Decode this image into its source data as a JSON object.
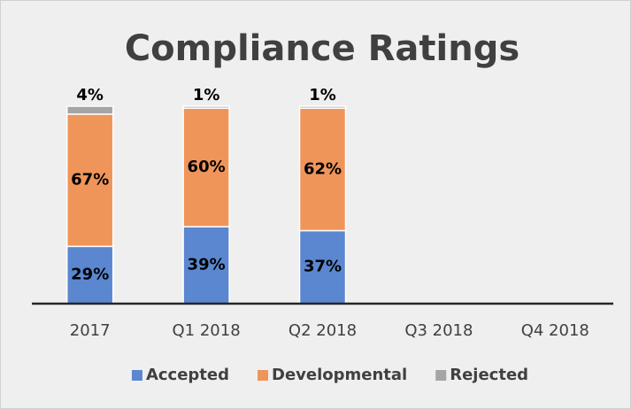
{
  "chart_data": {
    "type": "stacked-bar",
    "title": "Compliance Ratings",
    "categories": [
      "2017",
      "Q1 2018",
      "Q2 2018",
      "Q3 2018",
      "Q4 2018"
    ],
    "series": [
      {
        "name": "Accepted",
        "color": "#5b87d0",
        "values": [
          29,
          39,
          37,
          null,
          null
        ],
        "value_labels": [
          "29%",
          "39%",
          "37%",
          null,
          null
        ]
      },
      {
        "name": "Developmental",
        "color": "#f0955a",
        "values": [
          67,
          60,
          62,
          null,
          null
        ],
        "value_labels": [
          "67%",
          "60%",
          "62%",
          null,
          null
        ]
      },
      {
        "name": "Rejected",
        "color": "#a5a5a5",
        "values": [
          4,
          1,
          1,
          null,
          null
        ],
        "value_labels": [
          "4%",
          "1%",
          "1%",
          null,
          null
        ]
      }
    ],
    "ylim": [
      0,
      100
    ],
    "legend": "bottom"
  }
}
